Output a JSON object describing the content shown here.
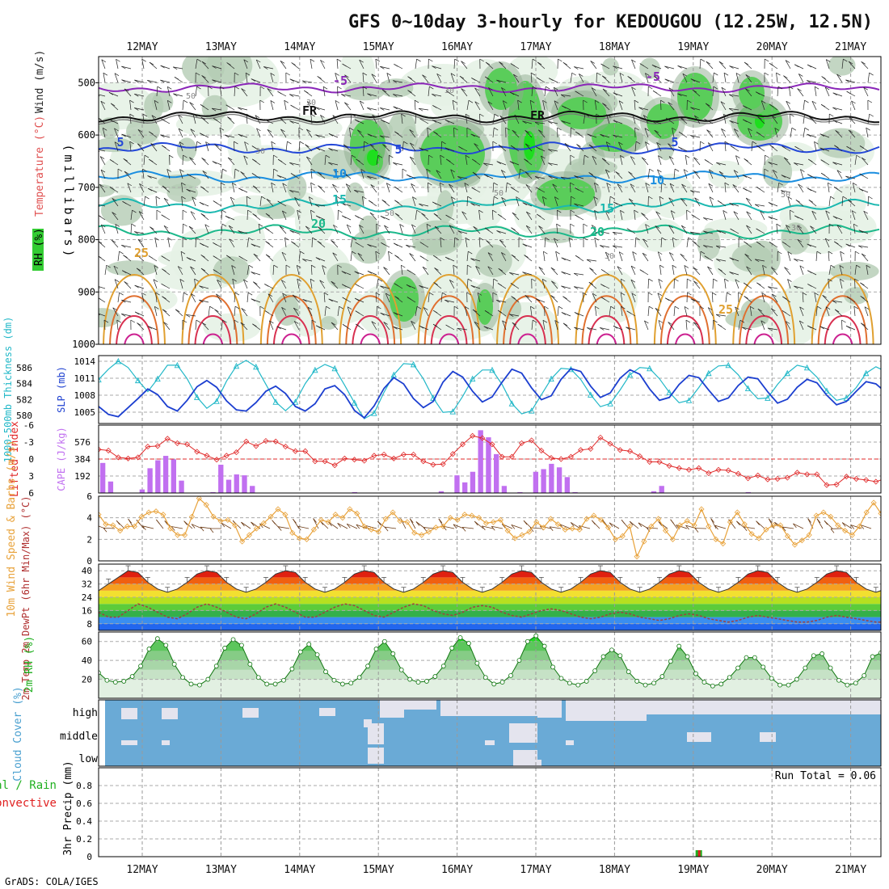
{
  "title": "GFS 0~10day 3-hourly for KEDOUGOU (12.25W, 12.5N)",
  "footer": "GrADS: COLA/IGES",
  "dates": [
    "12MAY",
    "13MAY",
    "14MAY",
    "15MAY",
    "16MAY",
    "17MAY",
    "18MAY",
    "19MAY",
    "20MAY",
    "21MAY"
  ],
  "colors": {
    "rh_light": "#e6f2e6",
    "rh_mid": "#b4ccb4",
    "rh_dark": "#8fab8f",
    "rh_green": "#5acd5a",
    "rh_bright": "#1ede1e",
    "thickness": "#22b8c8",
    "slp": "#1c3fd0",
    "lifted": "#e02a2a",
    "cape": "#c170f0",
    "wind": "#e8a23a",
    "barb": "#6b3a14",
    "dewpt": "#a04040",
    "rh2m": "#1cae1c",
    "cloud_fill": "#6aaad6",
    "cloud_gap": "#e4e4ee",
    "precip_total": "#20b020",
    "precip_conv": "#e02020"
  },
  "chart_data": [
    {
      "type": "heatmap",
      "title": "GFS 0~10day 3-hourly for KEDOUGOU (12.25W, 12.5N)",
      "ylabel": "(millibars)",
      "legend_labels": [
        "RH (%)",
        "Temperature (°C)",
        "Wind (m/s)"
      ],
      "y_ticks": [
        500,
        600,
        700,
        800,
        900,
        1000
      ],
      "ylim": [
        1000,
        450
      ],
      "isotherm_labels": [
        "-5",
        "FR",
        "5",
        "10",
        "15",
        "20",
        "25"
      ],
      "rh_labels": [
        "30",
        "50"
      ],
      "isotherms": [
        {
          "label": "-5",
          "color": "#8a26b8",
          "base": 510,
          "amp": 8
        },
        {
          "label": "FR",
          "color": "#111111",
          "base": 565,
          "amp": 10
        },
        {
          "label": "5",
          "color": "#2448d8",
          "base": 625,
          "amp": 10
        },
        {
          "label": "10",
          "color": "#1a8ee0",
          "base": 680,
          "amp": 10
        },
        {
          "label": "15",
          "color": "#1ab8b0",
          "base": 735,
          "amp": 12
        },
        {
          "label": "20",
          "color": "#1ab88a",
          "base": 785,
          "amp": 12
        }
      ]
    },
    {
      "type": "line",
      "ylabel_left": "1000-500mb Thickness (dm)",
      "ylabel_right": "SLP (mb)",
      "y_ticks_left": [
        580,
        582,
        584,
        586
      ],
      "y_ticks_right": [
        1005,
        1008,
        1011,
        1014
      ],
      "ylim_left": [
        579,
        587.5
      ],
      "ylim_right": [
        1003,
        1015
      ],
      "series": [
        {
          "name": "1000-500mb Thickness",
          "values": [
            584.5,
            585.8,
            586.8,
            586.0,
            584.4,
            583.0,
            584.6,
            586.3,
            586.3,
            584.6,
            582.3,
            580.9,
            581.8,
            584.3,
            586.2,
            586.9,
            586.1,
            583.9,
            581.7,
            580.6,
            581.7,
            584.0,
            585.7,
            586.4,
            585.9,
            583.8,
            581.6,
            579.6,
            580.3,
            582.9,
            585.1,
            586.5,
            586.4,
            584.6,
            582.2,
            580.4,
            580.5,
            582.4,
            584.6,
            585.7,
            585.7,
            583.9,
            581.5,
            580.2,
            580.6,
            582.6,
            584.6,
            585.9,
            585.8,
            584.5,
            582.6,
            581.1,
            581.5,
            583.2,
            585.1,
            586.0,
            585.9,
            584.6,
            582.9,
            581.6,
            581.9,
            583.5,
            585.3,
            586.2,
            586.3,
            585.1,
            583.4,
            582.1,
            582.2,
            583.9,
            585.3,
            586.3,
            586.0,
            584.8,
            583.1,
            581.9,
            582.2,
            583.5,
            585.3,
            586.1,
            585.5,
            583.9,
            582.4
          ]
        },
        {
          "name": "SLP",
          "values": [
            1006.0,
            1004.6,
            1004.2,
            1005.8,
            1007.4,
            1009.1,
            1008.1,
            1006.0,
            1005.2,
            1007.1,
            1009.5,
            1010.6,
            1009.4,
            1007.0,
            1005.4,
            1005.2,
            1006.7,
            1008.7,
            1009.6,
            1008.3,
            1006.0,
            1005.2,
            1006.5,
            1009.1,
            1009.7,
            1008.1,
            1005.3,
            1004.0,
            1006.1,
            1009.2,
            1011.1,
            1010.0,
            1007.4,
            1005.8,
            1006.9,
            1010.3,
            1012.2,
            1011.2,
            1008.7,
            1006.8,
            1007.7,
            1010.3,
            1012.6,
            1011.9,
            1009.3,
            1007.2,
            1007.9,
            1010.8,
            1012.7,
            1012.2,
            1009.6,
            1007.6,
            1008.4,
            1011.0,
            1012.5,
            1011.7,
            1009.1,
            1007.1,
            1007.6,
            1009.9,
            1011.5,
            1011.1,
            1008.9,
            1006.9,
            1007.5,
            1009.7,
            1011.2,
            1010.9,
            1008.6,
            1006.6,
            1007.3,
            1009.4,
            1010.8,
            1010.2,
            1008.0,
            1006.3,
            1006.9,
            1008.7,
            1010.4,
            1010.0,
            1008.5,
            1008.8,
            1010.3
          ]
        }
      ]
    },
    {
      "type": "bar",
      "ylabel_left": "Lifted Index",
      "ylabel_right": "CAPE (J/kg)",
      "y_ticks_left": [
        -6,
        -3,
        0,
        3,
        6
      ],
      "y_ticks_right": [
        192,
        384,
        576
      ],
      "ylim_left": [
        6,
        -6
      ],
      "ylim_right": [
        0,
        768
      ],
      "series": [
        {
          "name": "CAPE",
          "values": [
            340,
            130,
            0,
            0,
            0,
            40,
            280,
            370,
            420,
            380,
            140,
            0,
            0,
            0,
            10,
            320,
            150,
            210,
            200,
            80,
            0,
            0,
            0,
            0,
            0,
            0,
            0,
            0,
            0,
            0,
            0,
            0,
            10,
            0,
            0,
            0,
            0,
            0,
            0,
            0,
            0,
            0,
            0,
            20,
            0,
            200,
            120,
            240,
            710,
            630,
            440,
            80,
            0,
            10,
            0,
            240,
            270,
            330,
            290,
            180,
            10,
            0,
            0,
            0,
            0,
            0,
            0,
            0,
            0,
            0,
            20,
            80,
            0,
            0,
            0,
            0,
            0,
            0,
            0,
            0,
            0,
            0,
            10,
            0,
            0,
            0,
            0,
            0,
            0,
            0,
            0,
            0,
            0,
            0,
            0,
            0,
            0,
            0,
            0,
            0,
            0,
            0,
            0,
            0,
            0,
            0,
            0,
            0,
            0,
            0
          ]
        },
        {
          "name": "Lifted Index",
          "values": [
            -1.7,
            -1.5,
            -0.3,
            -0.1,
            -0.3,
            -2.2,
            -2.3,
            -3.6,
            -2.8,
            -2.6,
            -1.3,
            -0.6,
            0.1,
            -0.6,
            -1.2,
            -3.1,
            -2.3,
            -3.2,
            -3.1,
            -2.2,
            -1.4,
            -1.4,
            0.4,
            0.4,
            1.1,
            -0.1,
            0.1,
            0.3,
            -0.6,
            -0.8,
            -0.1,
            -0.8,
            -0.8,
            0.4,
            1.0,
            0.9,
            -0.9,
            -2.6,
            -4.1,
            -3.7,
            -2.6,
            -0.4,
            -0.4,
            -2.8,
            -3.3,
            -1.5,
            -0.2,
            0.0,
            -0.4,
            -1.6,
            -1.8,
            -3.8,
            -2.7,
            -1.6,
            -1.4,
            -0.5,
            0.5,
            0.5,
            1.2,
            1.6,
            1.9,
            1.6,
            2.5,
            1.9,
            2.0,
            2.6,
            3.4,
            2.9,
            3.6,
            3.5,
            3.3,
            2.4,
            2.7,
            2.7,
            4.6,
            4.5,
            3.1,
            3.5,
            3.7,
            4.0,
            3.4,
            4.1
          ]
        }
      ]
    },
    {
      "type": "line",
      "ylabel_left": "10m Wind Speed & Barbs (m/s)",
      "y_ticks": [
        0,
        2,
        4,
        6
      ],
      "ylim": [
        0,
        6
      ],
      "series": [
        {
          "name": "10m Wind Speed",
          "values": [
            4.3,
            3.4,
            3.3,
            2.8,
            3.2,
            3.2,
            4.1,
            4.5,
            4.6,
            4.3,
            3.0,
            2.4,
            2.4,
            4.1,
            5.8,
            5.2,
            4.1,
            3.7,
            3.8,
            3.3,
            1.8,
            2.4,
            3.0,
            3.5,
            4.1,
            4.8,
            4.3,
            2.6,
            2.1,
            2.0,
            2.9,
            3.8,
            3.6,
            4.3,
            4.0,
            4.8,
            4.4,
            3.2,
            2.9,
            2.7,
            3.9,
            4.5,
            3.7,
            3.6,
            2.6,
            2.4,
            2.7,
            3.1,
            3.2,
            4.0,
            3.8,
            4.3,
            4.2,
            4.0,
            3.5,
            3.6,
            3.8,
            2.8,
            2.1,
            2.4,
            2.7,
            3.6,
            3.1,
            3.9,
            3.4,
            2.9,
            3.0,
            2.9,
            3.9,
            4.2,
            3.8,
            3.1,
            2.0,
            2.3,
            3.2,
            0.4,
            1.8,
            3.2,
            3.9,
            2.8,
            2.0,
            3.3,
            3.7,
            3.3,
            4.8,
            3.2,
            2.0,
            1.6,
            3.6,
            4.5,
            3.4,
            2.5,
            2.1,
            2.9,
            3.3,
            3.3,
            2.3,
            1.5,
            1.9,
            2.4,
            4.2,
            4.5,
            4.1,
            3.3,
            2.8,
            2.4,
            3.2,
            4.5,
            5.4,
            4.4
          ]
        }
      ]
    },
    {
      "type": "area",
      "ylabel_left": "2m Temp 2m DewPt (6hr Min/Max) (°C)",
      "y_ticks": [
        8,
        16,
        24,
        32,
        40
      ],
      "ylim": [
        4,
        44
      ],
      "series": [
        {
          "name": "2m Temp",
          "values": [
            28,
            32,
            36,
            40,
            39,
            33,
            29,
            27,
            29,
            33,
            38,
            40,
            39,
            33,
            29,
            27,
            29,
            33,
            38,
            40,
            39,
            33,
            29,
            27,
            29,
            33,
            38,
            40,
            39,
            33,
            29,
            27,
            29,
            33,
            38,
            40,
            39,
            33,
            29,
            27,
            29,
            33,
            38,
            40,
            39,
            33,
            29,
            27,
            29,
            33,
            38,
            40,
            39,
            33,
            29,
            27,
            29,
            33,
            38,
            40,
            39,
            33,
            29,
            27,
            29,
            33,
            38,
            40,
            39,
            33,
            29,
            27,
            29,
            33,
            38,
            40,
            39,
            33,
            29,
            27,
            29,
            33,
            38,
            40,
            39,
            33,
            29,
            26
          ]
        },
        {
          "name": "2m DewPt",
          "values": [
            15,
            12,
            12,
            16,
            20,
            18,
            15,
            12,
            11,
            14,
            18,
            20,
            18,
            15,
            12,
            11,
            14,
            18,
            20,
            18,
            15,
            12,
            12,
            15,
            18,
            20,
            19,
            16,
            13,
            12,
            15,
            18,
            20,
            19,
            16,
            14,
            13,
            15,
            18,
            19,
            18,
            15,
            13,
            12,
            14,
            16,
            17,
            16,
            14,
            12,
            11,
            12,
            14,
            15,
            14,
            12,
            11,
            10,
            11,
            13,
            14,
            13,
            11,
            10,
            9,
            10,
            12,
            13,
            12,
            11,
            10,
            9,
            9,
            10,
            12,
            13,
            12,
            11,
            10,
            9,
            9,
            10,
            14
          ]
        }
      ]
    },
    {
      "type": "area",
      "ylabel_left": "2m RH (%)",
      "y_ticks": [
        20,
        40,
        60
      ],
      "ylim": [
        0,
        70
      ],
      "series": [
        {
          "name": "2m RH",
          "values": [
            27,
            19,
            17,
            18,
            23,
            34,
            52,
            63,
            56,
            36,
            22,
            15,
            14,
            20,
            34,
            53,
            62,
            56,
            36,
            22,
            15,
            15,
            19,
            31,
            49,
            57,
            46,
            28,
            19,
            15,
            16,
            22,
            34,
            52,
            60,
            47,
            30,
            20,
            17,
            18,
            23,
            34,
            53,
            64,
            58,
            37,
            22,
            15,
            17,
            24,
            40,
            60,
            66,
            55,
            33,
            21,
            16,
            14,
            18,
            29,
            44,
            51,
            45,
            28,
            18,
            14,
            16,
            23,
            39,
            55,
            44,
            26,
            17,
            13,
            15,
            22,
            32,
            43,
            43,
            33,
            21,
            14,
            14,
            20,
            32,
            45,
            47,
            32,
            19,
            14,
            16,
            24,
            44,
            48
          ]
        }
      ]
    },
    {
      "type": "bar",
      "ylabel_left": "Cloud Cover (%)",
      "row_labels": [
        "high",
        "middle",
        "low"
      ]
    },
    {
      "type": "bar",
      "ylabel_left": "3hr Precip (mm)",
      "legend_labels": [
        "Total / Rain",
        "Convective"
      ],
      "y_ticks": [
        0,
        0.2,
        0.4,
        0.6,
        0.8
      ],
      "ylim": [
        0,
        1.0
      ],
      "annotation": "Run Total = 0.06",
      "series": [
        {
          "name": "Total",
          "values": [
            0,
            0,
            0,
            0,
            0,
            0,
            0,
            0,
            0,
            0,
            0,
            0,
            0,
            0,
            0,
            0,
            0,
            0,
            0,
            0,
            0,
            0,
            0,
            0,
            0,
            0,
            0,
            0,
            0,
            0,
            0,
            0,
            0,
            0,
            0,
            0,
            0,
            0,
            0,
            0,
            0,
            0,
            0,
            0,
            0,
            0,
            0,
            0,
            0,
            0,
            0,
            0,
            0,
            0,
            0,
            0,
            0,
            0,
            0,
            0,
            0,
            0.06,
            0,
            0,
            0,
            0,
            0,
            0,
            0,
            0,
            0,
            0,
            0,
            0,
            0,
            0,
            0,
            0,
            0,
            0,
            0,
            0,
            0
          ]
        }
      ]
    }
  ]
}
